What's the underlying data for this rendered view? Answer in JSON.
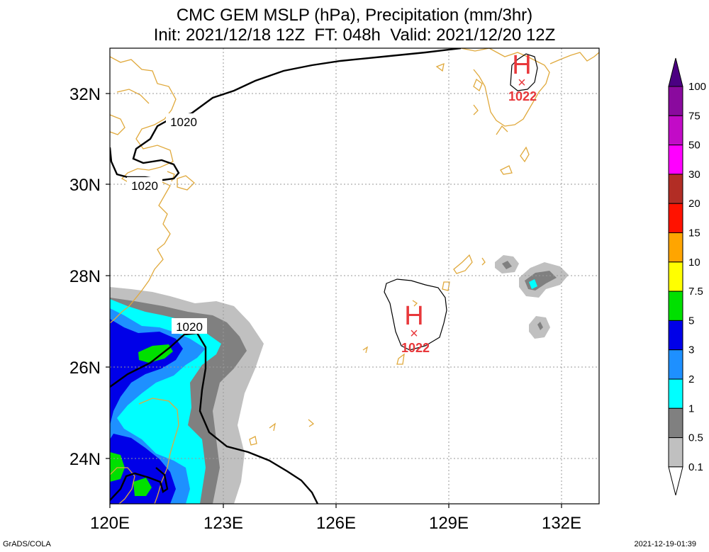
{
  "title": {
    "line1": "CMC GEM MSLP (hPa), Precipitation (mm/3hr)",
    "line2": "Init: 2021/12/18 12Z  FT: 048h  Valid: 2021/12/20 12Z"
  },
  "map": {
    "lon_labels": [
      "120E",
      "123E",
      "126E",
      "129E",
      "132E"
    ],
    "lat_labels": [
      "32N",
      "30N",
      "28N",
      "26N",
      "24N"
    ],
    "isobar_labels": [
      "1020",
      "1020",
      "1020"
    ],
    "highs": [
      {
        "symbol": "H",
        "value": "1022"
      },
      {
        "symbol": "H",
        "value": "1022"
      }
    ],
    "colors": {
      "coast": "#e0a93c",
      "high": "#e8383b",
      "isobar": "#000000"
    }
  },
  "legend": {
    "labels": [
      "100",
      "75",
      "50",
      "30",
      "20",
      "15",
      "10",
      "7.5",
      "5",
      "3",
      "2",
      "1",
      "0.5",
      "0.1"
    ],
    "colors": [
      "#4b0082",
      "#8a0a9e",
      "#c20bc7",
      "#ff00ff",
      "#b22d25",
      "#ff1200",
      "#ffa500",
      "#ffff00",
      "#00e000",
      "#0000e8",
      "#1e90ff",
      "#00ffff",
      "#808080",
      "#c0c0c0"
    ]
  },
  "footer": {
    "left": "GrADS/COLA",
    "right": "2021-12-19-01:39"
  }
}
